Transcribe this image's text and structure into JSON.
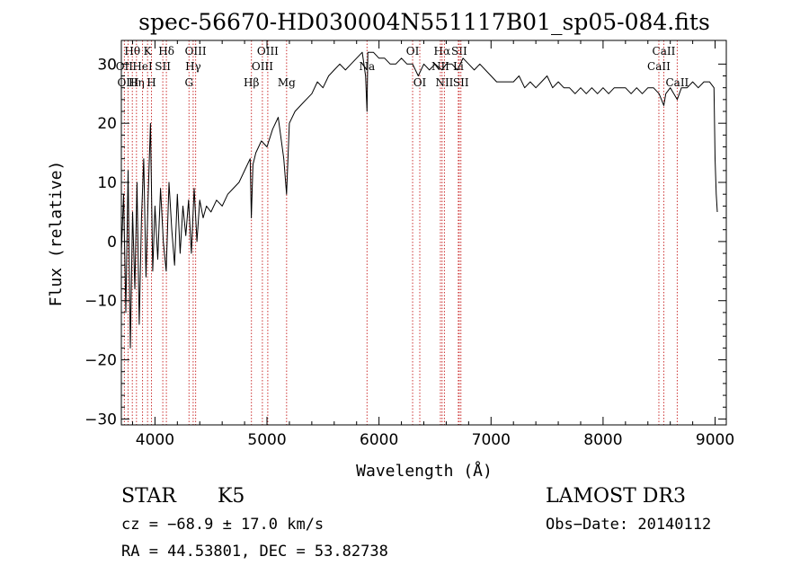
{
  "chart_data": {
    "type": "line",
    "title": "spec-56670-HD030004N551117B01_sp05-084.fits",
    "xlabel": "Wavelength (Å)",
    "ylabel": "Flux (relative)",
    "xlim": [
      3700,
      9100
    ],
    "ylim": [
      -31,
      34
    ],
    "xticks": [
      4000,
      5000,
      6000,
      7000,
      8000,
      9000
    ],
    "yticks": [
      -30,
      -20,
      -10,
      0,
      10,
      20,
      30
    ],
    "xtick_labels": [
      "4000",
      "5000",
      "6000",
      "7000",
      "8000",
      "9000"
    ],
    "ytick_labels": [
      "−30",
      "−20",
      "−10",
      "0",
      "10",
      "20",
      "30"
    ],
    "grid": false,
    "series": [
      {
        "name": "spectrum",
        "x": [
          3700,
          3720,
          3740,
          3760,
          3780,
          3800,
          3820,
          3840,
          3860,
          3880,
          3900,
          3920,
          3940,
          3960,
          3980,
          4000,
          4025,
          4050,
          4075,
          4100,
          4125,
          4150,
          4175,
          4200,
          4225,
          4250,
          4275,
          4300,
          4325,
          4350,
          4375,
          4400,
          4430,
          4460,
          4500,
          4550,
          4600,
          4650,
          4700,
          4750,
          4800,
          4850,
          4860,
          4875,
          4900,
          4950,
          5000,
          5050,
          5100,
          5150,
          5175,
          5200,
          5250,
          5300,
          5350,
          5400,
          5450,
          5500,
          5550,
          5600,
          5650,
          5700,
          5750,
          5800,
          5850,
          5880,
          5893,
          5900,
          5950,
          6000,
          6050,
          6100,
          6150,
          6200,
          6250,
          6300,
          6350,
          6400,
          6450,
          6500,
          6563,
          6600,
          6650,
          6700,
          6750,
          6800,
          6850,
          6900,
          6950,
          7000,
          7050,
          7100,
          7150,
          7200,
          7250,
          7300,
          7350,
          7400,
          7450,
          7500,
          7550,
          7600,
          7650,
          7700,
          7750,
          7800,
          7850,
          7900,
          7950,
          8000,
          8050,
          8100,
          8150,
          8200,
          8250,
          8300,
          8350,
          8400,
          8450,
          8500,
          8542,
          8560,
          8600,
          8662,
          8700,
          8750,
          8800,
          8850,
          8900,
          8950,
          8990,
          9000,
          9010,
          9020
        ],
        "y": [
          -2,
          8,
          -12,
          12,
          -18,
          5,
          -8,
          10,
          -14,
          4,
          14,
          -6,
          8,
          20,
          -5,
          6,
          -3,
          9,
          0,
          -5,
          10,
          2,
          -4,
          8,
          -2,
          6,
          1,
          7,
          -2,
          9,
          0,
          7,
          4,
          6,
          5,
          7,
          6,
          8,
          9,
          10,
          12,
          14,
          4,
          13,
          15,
          17,
          16,
          19,
          21,
          14,
          8,
          20,
          22,
          23,
          24,
          25,
          27,
          26,
          28,
          29,
          30,
          29,
          30,
          31,
          32,
          28,
          22,
          32,
          32,
          31,
          31,
          30,
          30,
          31,
          30,
          30,
          28,
          30,
          29,
          30,
          29,
          30,
          30,
          29,
          31,
          30,
          29,
          30,
          29,
          28,
          27,
          27,
          27,
          27,
          28,
          26,
          27,
          26,
          27,
          28,
          26,
          27,
          26,
          26,
          25,
          26,
          25,
          26,
          25,
          26,
          25,
          26,
          26,
          26,
          25,
          26,
          25,
          26,
          26,
          25,
          23,
          25,
          26,
          24,
          26,
          26,
          27,
          26,
          27,
          27,
          26,
          14,
          8,
          5
        ]
      }
    ],
    "line_markers": [
      {
        "label": "Hθ",
        "x": 3798,
        "row": 1
      },
      {
        "label": "OII",
        "x": 3727,
        "row": 2
      },
      {
        "label": "OIII",
        "x": 3760,
        "row": 3
      },
      {
        "label": "Hη",
        "x": 3835,
        "row": 3
      },
      {
        "label": "HeI",
        "x": 3889,
        "row": 2
      },
      {
        "label": "K",
        "x": 3934,
        "row": 1
      },
      {
        "label": "SII",
        "x": 4070,
        "row": 2
      },
      {
        "label": "H",
        "x": 3969,
        "row": 3
      },
      {
        "label": "Hδ",
        "x": 4102,
        "row": 1
      },
      {
        "label": "OIII",
        "x": 4363,
        "row": 1
      },
      {
        "label": "Hγ",
        "x": 4341,
        "row": 2
      },
      {
        "label": "G",
        "x": 4304,
        "row": 3
      },
      {
        "label": "OIII",
        "x": 5007,
        "row": 1
      },
      {
        "label": "OIII",
        "x": 4959,
        "row": 2
      },
      {
        "label": "Hβ",
        "x": 4861,
        "row": 3
      },
      {
        "label": "Mg",
        "x": 5175,
        "row": 3
      },
      {
        "label": "Na",
        "x": 5893,
        "row": 2
      },
      {
        "label": "OI",
        "x": 6300,
        "row": 1
      },
      {
        "label": "OI",
        "x": 6364,
        "row": 3
      },
      {
        "label": "Hα",
        "x": 6563,
        "row": 1
      },
      {
        "label": "NII",
        "x": 6548,
        "row": 2
      },
      {
        "label": "NII",
        "x": 6584,
        "row": 3
      },
      {
        "label": "SII",
        "x": 6716,
        "row": 1
      },
      {
        "label": "Li",
        "x": 6708,
        "row": 2
      },
      {
        "label": "SII",
        "x": 6731,
        "row": 3
      },
      {
        "label": "CaII",
        "x": 8542,
        "row": 1
      },
      {
        "label": "CaII",
        "x": 8498,
        "row": 2
      },
      {
        "label": "CaII",
        "x": 8662,
        "row": 3
      }
    ],
    "annotations": {
      "object_class": "STAR",
      "subclass": "K5",
      "survey": "LAMOST DR3",
      "cz": "cz = −68.9 ± 17.0 km/s",
      "obs_date": "Obs−Date: 20140112",
      "coords": "RA =  44.53801, DEC =  53.82738"
    }
  },
  "colors": {
    "marker_line": "#cc3333",
    "spectrum": "#000000",
    "axes": "#000000"
  }
}
